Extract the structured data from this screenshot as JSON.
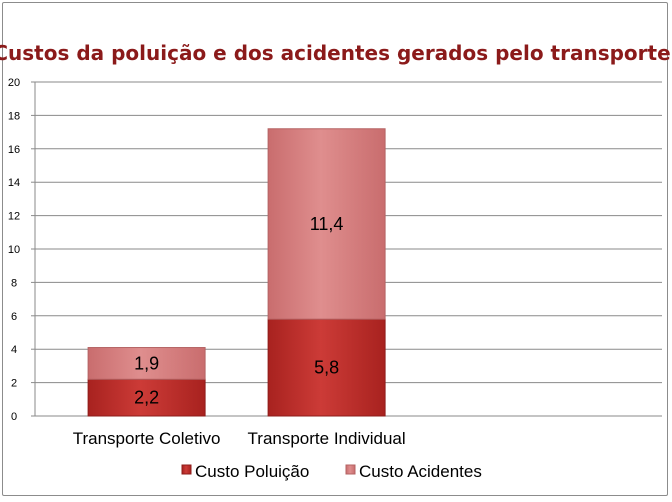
{
  "chart_data": {
    "type": "bar",
    "stacked": true,
    "title": "Custos da poluição e dos acidentes gerados pelo transporte",
    "xlabel": "",
    "ylabel": "",
    "categories": [
      "Transporte Coletivo",
      "Transporte Individual"
    ],
    "series": [
      {
        "name": "Custo Poluição",
        "values": [
          2.2,
          5.8
        ],
        "labels": [
          "2,2",
          "5,8"
        ],
        "color": "#c0302c"
      },
      {
        "name": "Custo Acidentes",
        "values": [
          1.9,
          11.4
        ],
        "labels": [
          "1,9",
          "11,4"
        ],
        "color": "#d9797a"
      }
    ],
    "ylim": [
      0,
      20
    ],
    "yticks": [
      "0",
      "2",
      "4",
      "6",
      "8",
      "10",
      "12",
      "14",
      "16",
      "18",
      "20"
    ],
    "grid": true,
    "legend_position": "bottom"
  }
}
